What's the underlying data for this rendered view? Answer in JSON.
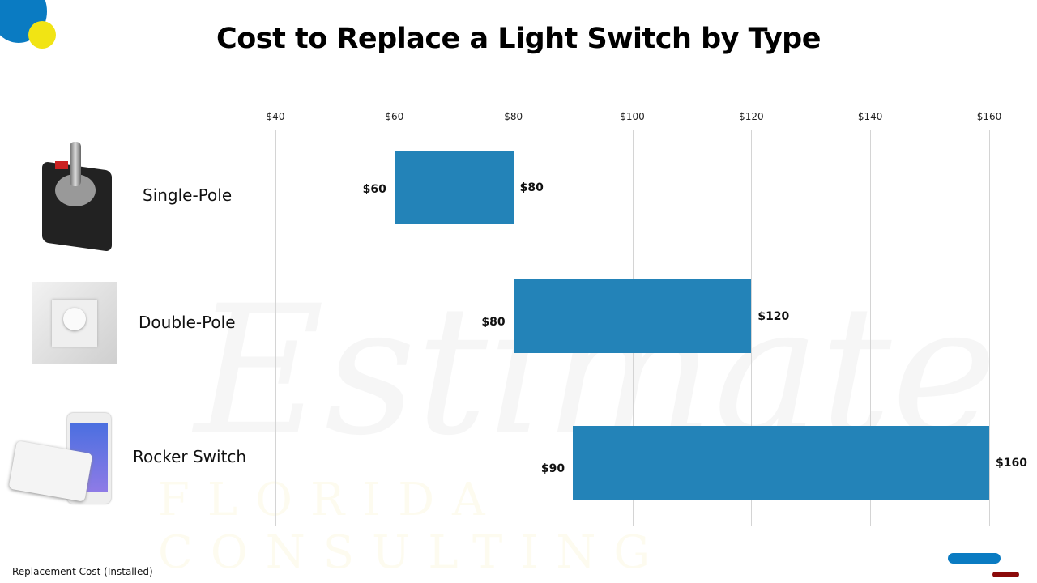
{
  "title": "Cost to Replace a Light Switch by Type",
  "footer": "Replacement Cost (Installed)",
  "watermark": {
    "text": "Estimate",
    "sub": "FLORIDA CONSULTING"
  },
  "colors": {
    "bar": "#2383b8",
    "logo_blue": "#0a7bc2",
    "logo_yellow": "#f1e414",
    "accent_red": "#8b0a0a"
  },
  "chart_data": {
    "type": "bar",
    "orientation": "horizontal-range",
    "title": "Cost to Replace a Light Switch by Type",
    "xlabel": "Replacement Cost (Installed)",
    "xlim": [
      40,
      160
    ],
    "ticks": [
      "$40",
      "$60",
      "$80",
      "$100",
      "$120",
      "$140",
      "$160"
    ],
    "tick_values": [
      40,
      60,
      80,
      100,
      120,
      140,
      160
    ],
    "grid": true,
    "categories": [
      "Single-Pole",
      "Double-Pole",
      "Rocker Switch"
    ],
    "ranges": [
      {
        "low": 60,
        "high": 80,
        "low_label": "$60",
        "high_label": "$80",
        "icon": "toggle-switch-image"
      },
      {
        "low": 80,
        "high": 120,
        "low_label": "$80",
        "high_label": "$120",
        "icon": "dimmer-switch-image"
      },
      {
        "low": 90,
        "high": 160,
        "low_label": "$90",
        "high_label": "$160",
        "icon": "smart-switch-image"
      }
    ]
  }
}
